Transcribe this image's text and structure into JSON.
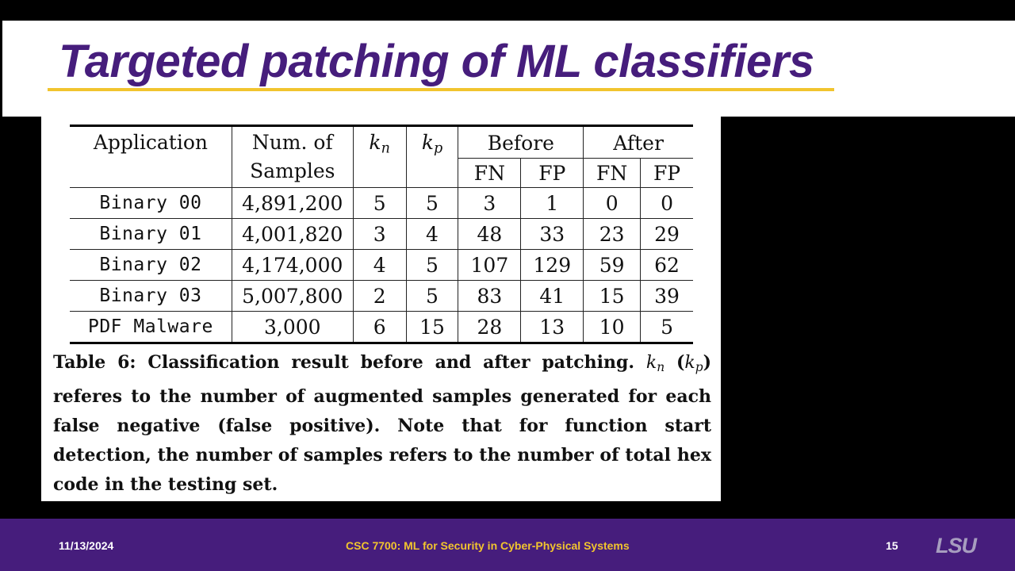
{
  "slide": {
    "title": "Targeted patching of ML classifiers"
  },
  "table": {
    "headers": {
      "application": "Application",
      "samples_line1": "Num. of",
      "samples_line2": "Samples",
      "kn_base": "k",
      "kn_sub": "n",
      "kp_base": "k",
      "kp_sub": "p",
      "before": "Before",
      "after": "After",
      "fn": "FN",
      "fp": "FP"
    },
    "rows": [
      {
        "application": "Binary 00",
        "samples": "4,891,200",
        "kn": "5",
        "kp": "5",
        "before_fn": "3",
        "before_fp": "1",
        "after_fn": "0",
        "after_fp": "0"
      },
      {
        "application": "Binary 01",
        "samples": "4,001,820",
        "kn": "3",
        "kp": "4",
        "before_fn": "48",
        "before_fp": "33",
        "after_fn": "23",
        "after_fp": "29"
      },
      {
        "application": "Binary 02",
        "samples": "4,174,000",
        "kn": "4",
        "kp": "5",
        "before_fn": "107",
        "before_fp": "129",
        "after_fn": "59",
        "after_fp": "62"
      },
      {
        "application": "Binary 03",
        "samples": "5,007,800",
        "kn": "2",
        "kp": "5",
        "before_fn": "83",
        "before_fp": "41",
        "after_fn": "15",
        "after_fp": "39"
      },
      {
        "application": "PDF Malware",
        "samples": "3,000",
        "kn": "6",
        "kp": "15",
        "before_fn": "28",
        "before_fp": "13",
        "after_fn": "10",
        "after_fp": "5"
      }
    ]
  },
  "caption": {
    "part1": "Table 6: Classification result before and after patching. ",
    "kn_base": "k",
    "kn_sub": "n",
    "part2": " (",
    "kp_base": "k",
    "kp_sub": "p",
    "part3": ") referes to the number of augmented samples generated for each false negative (false positive). Note that for function start detection, the number of samples refers to the number of total hex code in the testing set."
  },
  "footer": {
    "date": "11/13/2024",
    "course": "CSC 7700: ML for Security in Cyber-Physical Systems",
    "page": "15",
    "logo": "LSU"
  },
  "colors": {
    "brand_purple": "#461d7c",
    "brand_gold": "#f1c42e",
    "logo_gray": "#a79dbf"
  }
}
